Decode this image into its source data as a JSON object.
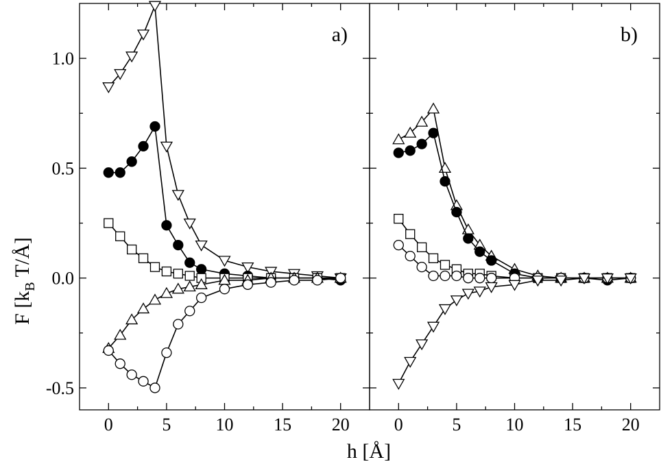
{
  "chart_data": [
    {
      "type": "line",
      "panel_label": "a)",
      "xlim": [
        -2.5,
        22.5
      ],
      "ylim": [
        -0.6,
        1.25
      ],
      "xticks": [
        0,
        5,
        10,
        15,
        20
      ],
      "yticks": [
        -0.5,
        0.0,
        0.5,
        1.0
      ],
      "xtick_labels": [
        "0",
        "5",
        "10",
        "15",
        "20"
      ],
      "ytick_labels": [
        "-0.5",
        "0.0",
        "0.5",
        "1.0"
      ],
      "series": [
        {
          "name": "down-triangle",
          "marker": "triangle-down",
          "filled": false,
          "x": [
            0,
            1,
            2,
            3,
            4,
            5,
            6,
            7,
            8,
            10,
            12,
            14,
            16,
            18,
            20
          ],
          "y": [
            0.87,
            0.93,
            1.01,
            1.11,
            1.24,
            0.6,
            0.38,
            0.25,
            0.15,
            0.08,
            0.05,
            0.03,
            0.02,
            0.01,
            0.0
          ]
        },
        {
          "name": "filled-circle",
          "marker": "circle",
          "filled": true,
          "x": [
            0,
            1,
            2,
            3,
            4,
            5,
            6,
            7,
            8,
            10,
            12,
            14,
            16,
            18,
            20
          ],
          "y": [
            0.48,
            0.48,
            0.53,
            0.6,
            0.69,
            0.24,
            0.15,
            0.07,
            0.04,
            0.02,
            0.01,
            0.0,
            0.0,
            0.0,
            -0.01
          ]
        },
        {
          "name": "square",
          "marker": "square",
          "filled": false,
          "x": [
            0,
            1,
            2,
            3,
            4,
            5,
            6,
            7,
            8,
            10,
            12,
            14,
            16,
            18,
            20
          ],
          "y": [
            0.25,
            0.19,
            0.13,
            0.09,
            0.05,
            0.03,
            0.02,
            0.01,
            0.0,
            0.0,
            0.0,
            0.0,
            0.0,
            0.0,
            0.0
          ]
        },
        {
          "name": "up-triangle",
          "marker": "triangle-up",
          "filled": false,
          "x": [
            0,
            1,
            2,
            3,
            4,
            5,
            6,
            7,
            8,
            10,
            12,
            14,
            16,
            18,
            20
          ],
          "y": [
            -0.32,
            -0.26,
            -0.19,
            -0.14,
            -0.1,
            -0.07,
            -0.05,
            -0.04,
            -0.03,
            -0.01,
            -0.01,
            0.0,
            0.0,
            0.0,
            0.0
          ]
        },
        {
          "name": "open-circle",
          "marker": "circle",
          "filled": false,
          "x": [
            0,
            1,
            2,
            3,
            4,
            5,
            6,
            7,
            8,
            10,
            12,
            14,
            16,
            18,
            20
          ],
          "y": [
            -0.33,
            -0.39,
            -0.44,
            -0.47,
            -0.5,
            -0.34,
            -0.21,
            -0.15,
            -0.09,
            -0.05,
            -0.03,
            -0.02,
            -0.01,
            -0.01,
            0.0
          ]
        }
      ]
    },
    {
      "type": "line",
      "panel_label": "b)",
      "xlim": [
        -2.5,
        22.5
      ],
      "ylim": [
        -0.6,
        1.25
      ],
      "xticks": [
        0,
        5,
        10,
        15,
        20
      ],
      "yticks": [
        -0.5,
        0.0,
        0.5,
        1.0
      ],
      "xtick_labels": [
        "0",
        "5",
        "10",
        "15",
        "20"
      ],
      "ytick_labels": [],
      "series": [
        {
          "name": "up-triangle",
          "marker": "triangle-up",
          "filled": false,
          "x": [
            0,
            1,
            2,
            3,
            4,
            5,
            6,
            7,
            8,
            10,
            12,
            14,
            16,
            18,
            20
          ],
          "y": [
            0.63,
            0.66,
            0.71,
            0.77,
            0.5,
            0.33,
            0.22,
            0.15,
            0.1,
            0.04,
            0.01,
            0.0,
            0.0,
            0.0,
            0.0
          ]
        },
        {
          "name": "filled-circle",
          "marker": "circle",
          "filled": true,
          "x": [
            0,
            1,
            2,
            3,
            4,
            5,
            6,
            7,
            8,
            10,
            12,
            14,
            16,
            18,
            20
          ],
          "y": [
            0.57,
            0.58,
            0.61,
            0.66,
            0.44,
            0.3,
            0.18,
            0.12,
            0.08,
            0.02,
            0.0,
            0.0,
            0.0,
            -0.01,
            0.0
          ]
        },
        {
          "name": "square",
          "marker": "square",
          "filled": false,
          "x": [
            0,
            1,
            2,
            3,
            4,
            5,
            6,
            7,
            8,
            10,
            12,
            14,
            16,
            18,
            20
          ],
          "y": [
            0.27,
            0.2,
            0.14,
            0.09,
            0.06,
            0.04,
            0.02,
            0.02,
            0.01,
            0.0,
            0.0,
            0.0,
            0.0,
            0.0,
            0.0
          ]
        },
        {
          "name": "open-circle",
          "marker": "circle",
          "filled": false,
          "x": [
            0,
            1,
            2,
            3,
            4,
            5,
            6,
            7,
            8,
            10,
            12,
            14,
            16,
            18,
            20
          ],
          "y": [
            0.15,
            0.1,
            0.05,
            0.01,
            0.01,
            0.01,
            0.0,
            0.0,
            0.0,
            0.0,
            0.0,
            0.0,
            0.0,
            0.0,
            0.0
          ]
        },
        {
          "name": "down-triangle",
          "marker": "triangle-down",
          "filled": false,
          "x": [
            0,
            1,
            2,
            3,
            4,
            5,
            6,
            7,
            8,
            10,
            12,
            14,
            16,
            18,
            20
          ],
          "y": [
            -0.48,
            -0.38,
            -0.3,
            -0.22,
            -0.14,
            -0.1,
            -0.07,
            -0.06,
            -0.04,
            -0.03,
            -0.01,
            -0.01,
            0.0,
            0.0,
            0.0
          ]
        }
      ]
    }
  ],
  "labels": {
    "ylabel_main": "F [k",
    "ylabel_sub": "B",
    "ylabel_tail": " T/Å]",
    "xlabel": "h [Å]"
  }
}
